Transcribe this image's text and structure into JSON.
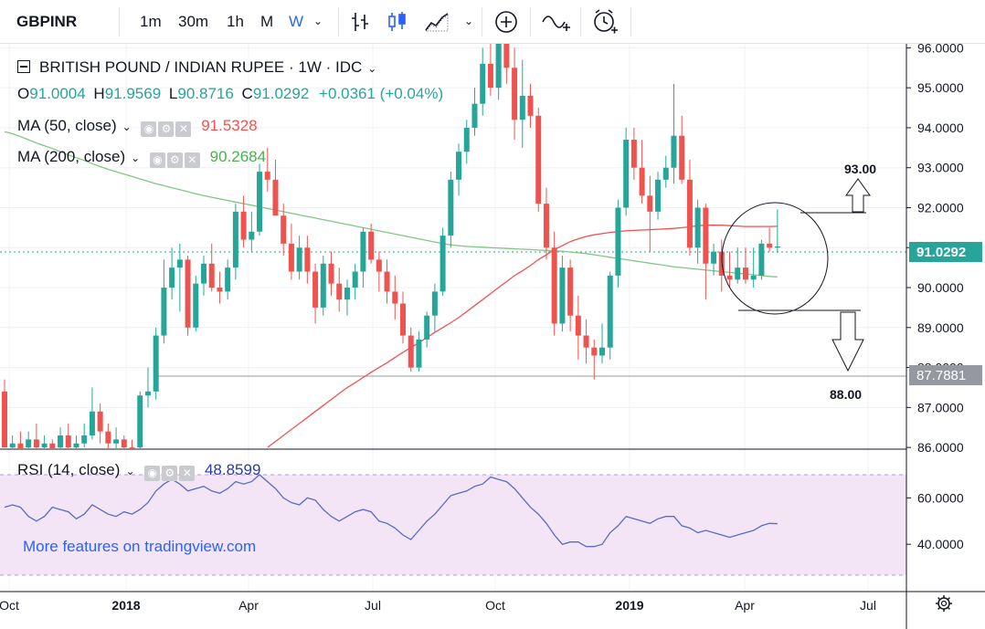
{
  "toolbar": {
    "symbol": "GBPINR",
    "intervals": [
      "1m",
      "30m",
      "1h",
      "M",
      "W"
    ],
    "active_interval": "W"
  },
  "header": {
    "title": "BRITISH POUND / INDIAN RUPEE · 1W · IDC",
    "open_label": "O",
    "open": "91.0004",
    "high_label": "H",
    "high": "91.9569",
    "low_label": "L",
    "low": "90.8716",
    "close_label": "C",
    "close": "91.0292",
    "change": "+0.0361 (+0.04%)"
  },
  "indicators": {
    "ma50": {
      "label": "MA (50, close)",
      "value": "91.5328",
      "color": "#ef5350"
    },
    "ma200": {
      "label": "MA (200, close)",
      "value": "90.2684",
      "color": "#4caf50"
    },
    "rsi": {
      "label": "RSI (14, close)",
      "value": "48.8599",
      "color": "#2a3aa8"
    }
  },
  "watermark": "More features on tradingview.com",
  "annotations": {
    "target_up": "93.00",
    "target_down": "88.00"
  },
  "colors": {
    "up": "#26a69a",
    "down": "#ef5350",
    "ma50": "#ef5350",
    "ma200": "#81c784",
    "rsi": "#5b6bbf",
    "rsi_band": "#f3e5f5",
    "last_price_bg": "#26a69a",
    "level_bg": "#9598a1"
  },
  "chart_data": {
    "type": "candlestick",
    "price_axis": {
      "labels": [
        "96.0000",
        "95.0000",
        "94.0000",
        "93.0000",
        "92.0000",
        "91.0000",
        "90.0000",
        "89.0000",
        "88.0000",
        "87.0000",
        "86.0000"
      ],
      "range": [
        85.98,
        96.1
      ]
    },
    "last_price": "91.0292",
    "horizontal_level": "87.7881",
    "time_axis": {
      "labels": [
        "Oct",
        "2018",
        "Apr",
        "Jul",
        "Oct",
        "2019",
        "Apr",
        "Jul"
      ]
    },
    "candles": [
      {
        "o": 87.4,
        "h": 87.7,
        "l": 86.0,
        "c": 86.0
      },
      {
        "o": 86.0,
        "h": 86.3,
        "l": 85.95,
        "c": 86.1
      },
      {
        "o": 86.1,
        "h": 86.4,
        "l": 85.95,
        "c": 85.98
      },
      {
        "o": 86.0,
        "h": 86.4,
        "l": 85.9,
        "c": 86.2
      },
      {
        "o": 86.2,
        "h": 86.6,
        "l": 85.9,
        "c": 86.0
      },
      {
        "o": 86.0,
        "h": 86.3,
        "l": 85.9,
        "c": 86.1
      },
      {
        "o": 86.1,
        "h": 86.2,
        "l": 85.9,
        "c": 85.98
      },
      {
        "o": 86.0,
        "h": 86.5,
        "l": 85.95,
        "c": 86.3
      },
      {
        "o": 86.3,
        "h": 86.6,
        "l": 85.95,
        "c": 86.0
      },
      {
        "o": 86.0,
        "h": 86.3,
        "l": 85.9,
        "c": 86.1
      },
      {
        "o": 86.1,
        "h": 86.6,
        "l": 86.0,
        "c": 86.3
      },
      {
        "o": 86.3,
        "h": 87.5,
        "l": 86.2,
        "c": 86.9
      },
      {
        "o": 86.9,
        "h": 87.1,
        "l": 86.1,
        "c": 86.4
      },
      {
        "o": 86.4,
        "h": 86.6,
        "l": 85.95,
        "c": 86.1
      },
      {
        "o": 86.1,
        "h": 86.5,
        "l": 85.9,
        "c": 86.2
      },
      {
        "o": 86.2,
        "h": 86.3,
        "l": 85.95,
        "c": 86.0
      },
      {
        "o": 86.0,
        "h": 86.2,
        "l": 85.9,
        "c": 85.98
      },
      {
        "o": 86.0,
        "h": 87.4,
        "l": 85.9,
        "c": 87.3
      },
      {
        "o": 87.3,
        "h": 88.0,
        "l": 87.0,
        "c": 87.4
      },
      {
        "o": 87.4,
        "h": 89.0,
        "l": 87.2,
        "c": 88.8
      },
      {
        "o": 88.8,
        "h": 90.7,
        "l": 88.6,
        "c": 90.0
      },
      {
        "o": 90.0,
        "h": 91.0,
        "l": 89.7,
        "c": 90.5
      },
      {
        "o": 90.5,
        "h": 91.1,
        "l": 89.4,
        "c": 90.7
      },
      {
        "o": 90.7,
        "h": 90.8,
        "l": 88.8,
        "c": 89.0
      },
      {
        "o": 89.0,
        "h": 90.3,
        "l": 88.9,
        "c": 90.1
      },
      {
        "o": 90.1,
        "h": 90.8,
        "l": 89.8,
        "c": 90.6
      },
      {
        "o": 90.6,
        "h": 91.1,
        "l": 89.9,
        "c": 90.0
      },
      {
        "o": 90.0,
        "h": 90.4,
        "l": 89.6,
        "c": 89.9
      },
      {
        "o": 89.9,
        "h": 90.7,
        "l": 89.7,
        "c": 90.5
      },
      {
        "o": 90.5,
        "h": 92.1,
        "l": 90.2,
        "c": 91.9
      },
      {
        "o": 91.9,
        "h": 92.3,
        "l": 91.0,
        "c": 91.2
      },
      {
        "o": 91.2,
        "h": 91.9,
        "l": 90.9,
        "c": 91.4
      },
      {
        "o": 91.4,
        "h": 93.1,
        "l": 91.3,
        "c": 92.9
      },
      {
        "o": 92.9,
        "h": 93.5,
        "l": 92.4,
        "c": 92.7
      },
      {
        "o": 92.7,
        "h": 93.2,
        "l": 91.9,
        "c": 91.8
      },
      {
        "o": 91.8,
        "h": 92.1,
        "l": 90.8,
        "c": 91.1
      },
      {
        "o": 91.1,
        "h": 91.6,
        "l": 90.2,
        "c": 90.4
      },
      {
        "o": 90.4,
        "h": 91.3,
        "l": 90.2,
        "c": 91.0
      },
      {
        "o": 91.0,
        "h": 91.3,
        "l": 90.1,
        "c": 90.4
      },
      {
        "o": 90.4,
        "h": 90.6,
        "l": 89.1,
        "c": 89.5
      },
      {
        "o": 89.5,
        "h": 90.8,
        "l": 89.3,
        "c": 90.6
      },
      {
        "o": 90.6,
        "h": 90.9,
        "l": 89.8,
        "c": 90.1
      },
      {
        "o": 90.1,
        "h": 90.5,
        "l": 89.4,
        "c": 89.7
      },
      {
        "o": 89.7,
        "h": 90.2,
        "l": 89.3,
        "c": 90.0
      },
      {
        "o": 90.0,
        "h": 90.6,
        "l": 89.7,
        "c": 90.4
      },
      {
        "o": 90.4,
        "h": 91.5,
        "l": 90.0,
        "c": 91.4
      },
      {
        "o": 91.4,
        "h": 91.6,
        "l": 90.6,
        "c": 90.7
      },
      {
        "o": 90.7,
        "h": 90.9,
        "l": 89.9,
        "c": 90.4
      },
      {
        "o": 90.4,
        "h": 90.7,
        "l": 89.6,
        "c": 89.9
      },
      {
        "o": 89.9,
        "h": 90.3,
        "l": 89.2,
        "c": 89.6
      },
      {
        "o": 89.6,
        "h": 89.9,
        "l": 88.6,
        "c": 88.8
      },
      {
        "o": 88.8,
        "h": 89.0,
        "l": 87.9,
        "c": 88.0
      },
      {
        "o": 88.0,
        "h": 88.9,
        "l": 87.9,
        "c": 88.7
      },
      {
        "o": 88.7,
        "h": 89.4,
        "l": 88.5,
        "c": 89.3
      },
      {
        "o": 89.3,
        "h": 90.1,
        "l": 88.9,
        "c": 89.9
      },
      {
        "o": 89.9,
        "h": 91.5,
        "l": 89.8,
        "c": 91.3
      },
      {
        "o": 91.3,
        "h": 92.9,
        "l": 91.0,
        "c": 92.7
      },
      {
        "o": 92.7,
        "h": 93.6,
        "l": 92.3,
        "c": 93.4
      },
      {
        "o": 93.4,
        "h": 94.2,
        "l": 93.1,
        "c": 94.0
      },
      {
        "o": 94.0,
        "h": 95.0,
        "l": 93.8,
        "c": 94.6
      },
      {
        "o": 94.6,
        "h": 96.0,
        "l": 94.3,
        "c": 95.6
      },
      {
        "o": 95.6,
        "h": 96.1,
        "l": 94.8,
        "c": 95.0
      },
      {
        "o": 95.0,
        "h": 96.1,
        "l": 94.7,
        "c": 96.1
      },
      {
        "o": 96.1,
        "h": 96.1,
        "l": 95.1,
        "c": 95.5
      },
      {
        "o": 95.5,
        "h": 96.0,
        "l": 93.7,
        "c": 94.2
      },
      {
        "o": 94.2,
        "h": 95.7,
        "l": 93.5,
        "c": 94.8
      },
      {
        "o": 94.8,
        "h": 95.1,
        "l": 94.0,
        "c": 94.3
      },
      {
        "o": 94.3,
        "h": 94.5,
        "l": 91.9,
        "c": 92.1
      },
      {
        "o": 92.1,
        "h": 92.5,
        "l": 90.7,
        "c": 91.0
      },
      {
        "o": 91.0,
        "h": 91.4,
        "l": 88.8,
        "c": 89.1
      },
      {
        "o": 89.1,
        "h": 90.8,
        "l": 88.9,
        "c": 90.5
      },
      {
        "o": 90.5,
        "h": 90.7,
        "l": 88.9,
        "c": 89.3
      },
      {
        "o": 89.3,
        "h": 89.8,
        "l": 88.2,
        "c": 88.8
      },
      {
        "o": 88.8,
        "h": 89.2,
        "l": 88.1,
        "c": 88.5
      },
      {
        "o": 88.5,
        "h": 88.7,
        "l": 87.7,
        "c": 88.3
      },
      {
        "o": 88.3,
        "h": 89.1,
        "l": 88.1,
        "c": 88.5
      },
      {
        "o": 88.5,
        "h": 90.4,
        "l": 88.2,
        "c": 90.3
      },
      {
        "o": 90.3,
        "h": 92.2,
        "l": 90.0,
        "c": 92.0
      },
      {
        "o": 92.0,
        "h": 94.0,
        "l": 91.8,
        "c": 93.7
      },
      {
        "o": 93.7,
        "h": 94.0,
        "l": 92.7,
        "c": 93.0
      },
      {
        "o": 93.0,
        "h": 93.7,
        "l": 92.1,
        "c": 92.3
      },
      {
        "o": 92.3,
        "h": 92.8,
        "l": 90.9,
        "c": 91.9
      },
      {
        "o": 91.9,
        "h": 92.9,
        "l": 91.7,
        "c": 92.7
      },
      {
        "o": 92.7,
        "h": 93.3,
        "l": 92.5,
        "c": 93.0
      },
      {
        "o": 93.0,
        "h": 95.1,
        "l": 92.6,
        "c": 93.8
      },
      {
        "o": 93.8,
        "h": 94.3,
        "l": 92.6,
        "c": 92.7
      },
      {
        "o": 92.7,
        "h": 93.2,
        "l": 90.8,
        "c": 91.0
      },
      {
        "o": 91.0,
        "h": 92.2,
        "l": 90.6,
        "c": 92.0
      },
      {
        "o": 92.0,
        "h": 92.1,
        "l": 89.7,
        "c": 90.6
      },
      {
        "o": 90.6,
        "h": 91.1,
        "l": 90.3,
        "c": 90.9
      },
      {
        "o": 90.9,
        "h": 91.2,
        "l": 89.9,
        "c": 90.3
      },
      {
        "o": 90.3,
        "h": 90.9,
        "l": 90.0,
        "c": 90.2
      },
      {
        "o": 90.2,
        "h": 91.0,
        "l": 90.1,
        "c": 90.5
      },
      {
        "o": 90.5,
        "h": 91.0,
        "l": 90.1,
        "c": 90.2
      },
      {
        "o": 90.2,
        "h": 91.0,
        "l": 90.0,
        "c": 90.3
      },
      {
        "o": 90.3,
        "h": 91.2,
        "l": 90.2,
        "c": 91.1
      },
      {
        "o": 91.1,
        "h": 91.5,
        "l": 90.9,
        "c": 91.0
      },
      {
        "o": 91.0004,
        "h": 91.9569,
        "l": 90.8716,
        "c": 91.0292
      }
    ],
    "ma50": [
      null,
      null,
      null,
      null,
      null,
      null,
      null,
      null,
      null,
      null,
      null,
      null,
      null,
      null,
      null,
      null,
      null,
      null,
      null,
      null,
      null,
      null,
      null,
      null,
      null,
      null,
      null,
      null,
      null,
      null,
      null,
      null,
      null,
      86.0,
      86.15,
      86.3,
      86.45,
      86.6,
      86.75,
      86.9,
      87.05,
      87.2,
      87.35,
      87.5,
      87.62,
      87.75,
      87.88,
      88.0,
      88.12,
      88.25,
      88.38,
      88.5,
      88.62,
      88.75,
      88.88,
      89.0,
      89.12,
      89.25,
      89.4,
      89.55,
      89.7,
      89.85,
      90.0,
      90.15,
      90.3,
      90.42,
      90.55,
      90.7,
      90.82,
      90.95,
      91.05,
      91.15,
      91.22,
      91.28,
      91.32,
      91.35,
      91.38,
      91.4,
      91.42,
      91.43,
      91.44,
      91.45,
      91.46,
      91.47,
      91.48,
      91.5,
      91.52,
      91.55,
      91.56,
      91.56,
      91.56,
      91.55,
      91.54,
      91.53,
      91.53,
      91.53,
      91.53,
      91.533
    ],
    "ma200": [
      93.9,
      93.85,
      93.78,
      93.7,
      93.62,
      93.55,
      93.48,
      93.4,
      93.32,
      93.25,
      93.18,
      93.1,
      93.03,
      92.96,
      92.9,
      92.84,
      92.78,
      92.72,
      92.66,
      92.6,
      92.55,
      92.5,
      92.45,
      92.4,
      92.35,
      92.3,
      92.26,
      92.22,
      92.18,
      92.14,
      92.1,
      92.06,
      92.02,
      91.98,
      91.94,
      91.9,
      91.86,
      91.82,
      91.78,
      91.74,
      91.7,
      91.66,
      91.62,
      91.58,
      91.54,
      91.5,
      91.46,
      91.42,
      91.38,
      91.34,
      91.3,
      91.26,
      91.22,
      91.18,
      91.14,
      91.1,
      91.07,
      91.05,
      91.03,
      91.02,
      91.01,
      91.0,
      90.99,
      90.98,
      90.97,
      90.96,
      90.95,
      90.94,
      90.93,
      90.92,
      90.91,
      90.89,
      90.87,
      90.85,
      90.82,
      90.79,
      90.76,
      90.73,
      90.7,
      90.67,
      90.64,
      90.61,
      90.58,
      90.55,
      90.52,
      90.5,
      90.48,
      90.46,
      90.44,
      90.42,
      90.4,
      90.38,
      90.36,
      90.34,
      90.32,
      90.3,
      90.28,
      90.268
    ],
    "rsi_axis": {
      "labels": [
        "60.0000",
        "40.0000"
      ],
      "range": [
        20,
        70
      ],
      "band": [
        30,
        70
      ]
    },
    "rsi": [
      56,
      57,
      56,
      52,
      50,
      52,
      56,
      55,
      54,
      51,
      53,
      57,
      55,
      53,
      52,
      54,
      53,
      55,
      58,
      63,
      66,
      68,
      66,
      63,
      64,
      65,
      63,
      62,
      64,
      67,
      66,
      67,
      70,
      67,
      64,
      60,
      58,
      57,
      60,
      59,
      55,
      52,
      50,
      52,
      54,
      55,
      54,
      50,
      49,
      47,
      44,
      42,
      46,
      50,
      53,
      57,
      61,
      62,
      63,
      65,
      66,
      69,
      68,
      67,
      64,
      60,
      56,
      53,
      49,
      44,
      40,
      41,
      41,
      39,
      39,
      40,
      45,
      48,
      52,
      51,
      50,
      49,
      51,
      52,
      52,
      48,
      47,
      45,
      46,
      45,
      44,
      43,
      44,
      45,
      46,
      48,
      49,
      48.86
    ]
  }
}
